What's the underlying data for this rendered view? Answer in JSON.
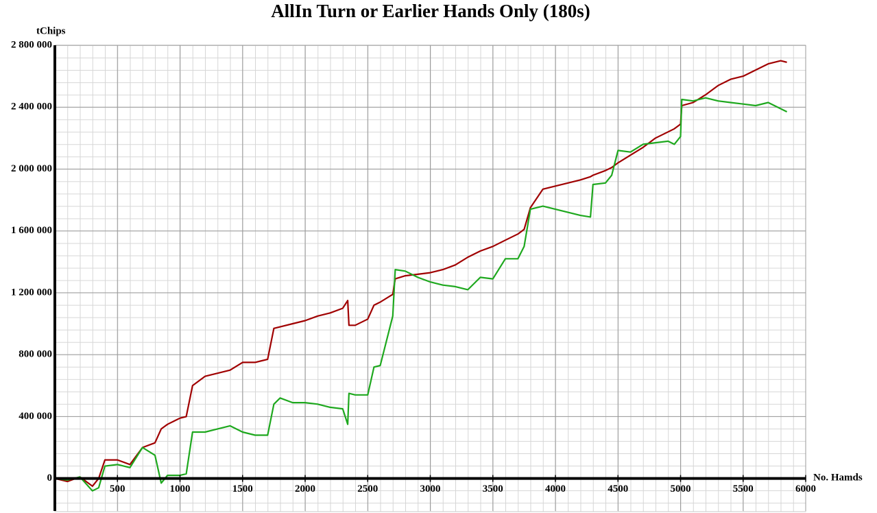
{
  "chart_data": {
    "type": "line",
    "title": "AllIn Turn or Earlier Hands Only (180s)",
    "y_label": "tChips",
    "x_label": "No. Hamds",
    "x": [
      0,
      100,
      200,
      300,
      350,
      400,
      500,
      600,
      700,
      800,
      850,
      900,
      1000,
      1050,
      1100,
      1200,
      1300,
      1400,
      1500,
      1600,
      1700,
      1750,
      1800,
      1900,
      2000,
      2100,
      2200,
      2300,
      2340,
      2350,
      2400,
      2500,
      2550,
      2600,
      2700,
      2720,
      2800,
      2900,
      3000,
      3100,
      3200,
      3300,
      3400,
      3500,
      3600,
      3700,
      3750,
      3800,
      3900,
      4000,
      4100,
      4200,
      4280,
      4300,
      4400,
      4450,
      4500,
      4600,
      4700,
      4800,
      4900,
      4950,
      5000,
      5010,
      5100,
      5200,
      5300,
      5400,
      5500,
      5600,
      5700,
      5800,
      5850
    ],
    "series": [
      {
        "color": "#a00000",
        "values": [
          0,
          -20000,
          10000,
          -50000,
          0,
          120000,
          120000,
          90000,
          200000,
          230000,
          320000,
          350000,
          390000,
          400000,
          600000,
          660000,
          680000,
          700000,
          750000,
          750000,
          770000,
          970000,
          980000,
          1000000,
          1020000,
          1050000,
          1070000,
          1100000,
          1150000,
          990000,
          990000,
          1030000,
          1120000,
          1140000,
          1190000,
          1290000,
          1310000,
          1320000,
          1330000,
          1350000,
          1380000,
          1430000,
          1470000,
          1500000,
          1540000,
          1580000,
          1610000,
          1750000,
          1870000,
          1890000,
          1910000,
          1930000,
          1950000,
          1960000,
          1990000,
          2010000,
          2040000,
          2090000,
          2140000,
          2200000,
          2240000,
          2260000,
          2290000,
          2410000,
          2430000,
          2480000,
          2540000,
          2580000,
          2600000,
          2640000,
          2680000,
          2700000,
          2690000
        ]
      },
      {
        "color": "#1ea81e",
        "values": [
          0,
          -10000,
          10000,
          -80000,
          -60000,
          80000,
          90000,
          70000,
          200000,
          150000,
          -30000,
          20000,
          20000,
          30000,
          300000,
          300000,
          320000,
          340000,
          300000,
          280000,
          280000,
          480000,
          520000,
          490000,
          490000,
          480000,
          460000,
          450000,
          350000,
          550000,
          540000,
          540000,
          720000,
          730000,
          1050000,
          1350000,
          1340000,
          1300000,
          1270000,
          1250000,
          1240000,
          1220000,
          1300000,
          1290000,
          1420000,
          1420000,
          1500000,
          1740000,
          1760000,
          1740000,
          1720000,
          1700000,
          1690000,
          1900000,
          1910000,
          1960000,
          2120000,
          2110000,
          2160000,
          2170000,
          2180000,
          2160000,
          2210000,
          2450000,
          2440000,
          2460000,
          2440000,
          2430000,
          2420000,
          2410000,
          2430000,
          2390000,
          2370000
        ]
      }
    ],
    "xlim": [
      0,
      6000
    ],
    "xticks": [
      500,
      1000,
      1500,
      2000,
      2500,
      3000,
      3500,
      4000,
      4500,
      5000,
      5500,
      6000
    ],
    "ylim": [
      -210000,
      2800000
    ],
    "yticks": [
      0,
      {
        "value": 400000,
        "label": "400 000"
      },
      {
        "value": 800000,
        "label": "800 000"
      },
      {
        "value": 1200000,
        "label": "1 200 000"
      },
      {
        "value": 1600000,
        "label": "1 600 000"
      },
      {
        "value": 2000000,
        "label": "2 000 000"
      },
      {
        "value": 2400000,
        "label": "2 400 000"
      },
      {
        "value": 2800000,
        "label": "2 800 000"
      }
    ],
    "grid": true
  }
}
